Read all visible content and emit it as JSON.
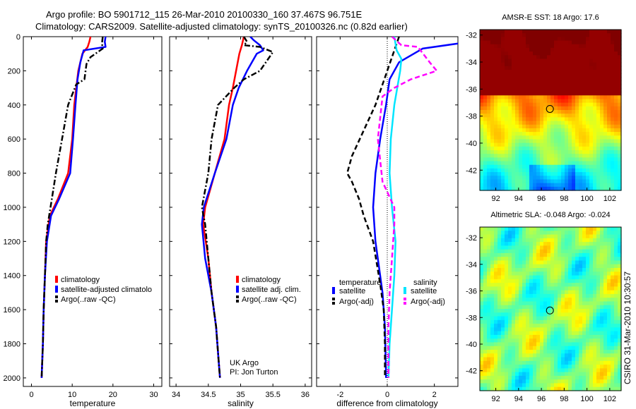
{
  "header": {
    "line1": "Argo profile: BO 5901712_115 26-Mar-2010 20100330_160 37.467S 96.751E",
    "line2": "Climatology: CARS2009. Satellite-adjusted climatology: synTS_20100326.nc (0.82d earlier)"
  },
  "side_label": "CSIRO 31-Mar-2010 10:30:57",
  "colors": {
    "red": "#ff0000",
    "blue": "#0000ff",
    "black": "#000000",
    "cyan": "#00e5ff",
    "magenta": "#ff00ff"
  },
  "chart_data": [
    {
      "type": "line",
      "xlabel": "temperature",
      "xlim": [
        -2,
        32
      ],
      "ylim": [
        2050,
        0
      ],
      "xticks": [
        0,
        10,
        20,
        30
      ],
      "yticks": [
        0,
        200,
        400,
        600,
        800,
        1000,
        1200,
        1400,
        1600,
        1800,
        2000
      ],
      "series": [
        {
          "name": "climatology",
          "color": "red",
          "dash": "solid",
          "points": [
            [
              14.5,
              0
            ],
            [
              14.2,
              30
            ],
            [
              13.8,
              60
            ],
            [
              12.5,
              100
            ],
            [
              11.5,
              200
            ],
            [
              11,
              300
            ],
            [
              10.5,
              400
            ],
            [
              10,
              600
            ],
            [
              9,
              800
            ],
            [
              6.5,
              950
            ],
            [
              4.5,
              1050
            ],
            [
              3.6,
              1200
            ],
            [
              3.3,
              1400
            ],
            [
              3,
              1600
            ],
            [
              2.8,
              1800
            ],
            [
              2.5,
              2000
            ]
          ]
        },
        {
          "name": "satellite-adjusted climatology",
          "color": "blue",
          "dash": "solid",
          "points": [
            [
              18.2,
              0
            ],
            [
              18,
              30
            ],
            [
              18.2,
              60
            ],
            [
              12.8,
              80
            ],
            [
              12,
              150
            ],
            [
              11.3,
              250
            ],
            [
              10.8,
              400
            ],
            [
              10.2,
              600
            ],
            [
              9.5,
              800
            ],
            [
              6.8,
              950
            ],
            [
              4.8,
              1050
            ],
            [
              3.8,
              1200
            ],
            [
              3.3,
              1400
            ],
            [
              3,
              1600
            ],
            [
              2.8,
              1800
            ],
            [
              2.5,
              2000
            ]
          ]
        },
        {
          "name": "Argo(..raw -QC)",
          "color": "black",
          "dash": "dashdot",
          "points": [
            [
              17.5,
              0
            ],
            [
              17.3,
              40
            ],
            [
              17.5,
              70
            ],
            [
              14.5,
              120
            ],
            [
              13.5,
              160
            ],
            [
              13,
              250
            ],
            [
              11,
              280
            ],
            [
              9,
              400
            ],
            [
              7.5,
              600
            ],
            [
              6,
              800
            ],
            [
              5,
              950
            ],
            [
              4,
              1100
            ],
            [
              3.6,
              1200
            ],
            [
              3.3,
              1400
            ],
            [
              3,
              1600
            ],
            [
              2.8,
              1800
            ],
            [
              2.5,
              2000
            ]
          ]
        }
      ],
      "legend": [
        {
          "label": "climatology",
          "color": "red",
          "style": "solid"
        },
        {
          "label": "satellite-adjusted climatolo",
          "color": "blue",
          "style": "solid"
        },
        {
          "label": "Argo(..raw -QC)",
          "color": "black",
          "style": "dashed"
        }
      ]
    },
    {
      "type": "line",
      "xlabel": "salinity",
      "xlim": [
        33.9,
        36.1
      ],
      "ylim": [
        2050,
        0
      ],
      "xticks": [
        34,
        34.5,
        35,
        35.5,
        36
      ],
      "xticklabels": [
        "34",
        "34.5",
        "35",
        "35.5",
        "36"
      ],
      "yticks": [
        0,
        200,
        400,
        600,
        800,
        1000,
        1200,
        1400,
        1600,
        1800,
        2000
      ],
      "series": [
        {
          "name": "climatology",
          "color": "red",
          "dash": "solid",
          "points": [
            [
              35.05,
              0
            ],
            [
              35.02,
              50
            ],
            [
              34.98,
              100
            ],
            [
              34.93,
              200
            ],
            [
              34.88,
              300
            ],
            [
              34.82,
              400
            ],
            [
              34.75,
              600
            ],
            [
              34.6,
              800
            ],
            [
              34.45,
              1000
            ],
            [
              34.42,
              1100
            ],
            [
              34.5,
              1300
            ],
            [
              34.55,
              1500
            ],
            [
              34.62,
              1700
            ],
            [
              34.66,
              1900
            ],
            [
              34.68,
              2000
            ]
          ]
        },
        {
          "name": "satellite adj. clim.",
          "color": "blue",
          "dash": "solid",
          "points": [
            [
              35.15,
              0
            ],
            [
              35.2,
              20
            ],
            [
              35.3,
              50
            ],
            [
              35.35,
              80
            ],
            [
              35.25,
              100
            ],
            [
              35.1,
              200
            ],
            [
              34.97,
              300
            ],
            [
              34.88,
              400
            ],
            [
              34.78,
              600
            ],
            [
              34.6,
              800
            ],
            [
              34.43,
              1000
            ],
            [
              34.4,
              1100
            ],
            [
              34.45,
              1300
            ],
            [
              34.55,
              1500
            ],
            [
              34.62,
              1700
            ],
            [
              34.66,
              1900
            ],
            [
              34.68,
              2000
            ]
          ]
        },
        {
          "name": "Argo(..raw -QC)",
          "color": "black",
          "dash": "dashdot",
          "points": [
            [
              35.05,
              0
            ],
            [
              35.1,
              30
            ],
            [
              35.05,
              50
            ],
            [
              35.3,
              60
            ],
            [
              35.5,
              90
            ],
            [
              35.3,
              200
            ],
            [
              35.05,
              250
            ],
            [
              34.9,
              300
            ],
            [
              34.65,
              400
            ],
            [
              34.55,
              600
            ],
            [
              34.5,
              800
            ],
            [
              34.4,
              1000
            ],
            [
              34.45,
              1100
            ],
            [
              34.5,
              1300
            ],
            [
              34.55,
              1500
            ],
            [
              34.62,
              1700
            ],
            [
              34.66,
              1900
            ],
            [
              34.68,
              2000
            ]
          ]
        }
      ],
      "legend": [
        {
          "label": "climatology",
          "color": "red",
          "style": "solid"
        },
        {
          "label": "satellite adj. clim.",
          "color": "blue",
          "style": "solid"
        },
        {
          "label": "Argo(..raw -QC)",
          "color": "black",
          "style": "dashed"
        }
      ],
      "annotations": [
        "UK Argo",
        "PI: Jon Turton"
      ]
    },
    {
      "type": "line",
      "xlabel": "difference from climatology",
      "xlim": [
        -3,
        3
      ],
      "ylim": [
        2050,
        0
      ],
      "xticks": [
        -2,
        0,
        2
      ],
      "yticks": [
        0,
        200,
        400,
        600,
        800,
        1000,
        1200,
        1400,
        1600,
        1800,
        2000
      ],
      "zero_line": "dotted",
      "series": [
        {
          "name": "temperature satellite",
          "color": "blue",
          "dash": "solid",
          "points": [
            [
              4,
              0
            ],
            [
              3,
              40
            ],
            [
              1.5,
              70
            ],
            [
              0.5,
              150
            ],
            [
              0.3,
              200
            ],
            [
              0.1,
              250
            ],
            [
              -0.05,
              400
            ],
            [
              -0.3,
              600
            ],
            [
              -0.5,
              800
            ],
            [
              -0.6,
              1000
            ],
            [
              -0.5,
              1200
            ],
            [
              -0.2,
              1500
            ],
            [
              -0.1,
              1700
            ],
            [
              -0.05,
              2000
            ]
          ]
        },
        {
          "name": "temperature Argo(-adj)",
          "color": "black",
          "dash": "dashed",
          "points": [
            [
              0.5,
              0
            ],
            [
              -0.5,
              400
            ],
            [
              -1.5,
              700
            ],
            [
              -1.7,
              800
            ],
            [
              -1.5,
              850
            ],
            [
              -1.2,
              950
            ],
            [
              -1.0,
              1050
            ],
            [
              -0.6,
              1200
            ],
            [
              -0.3,
              1450
            ],
            [
              -0.15,
              1600
            ],
            [
              -0.1,
              1800
            ],
            [
              -0.1,
              2000
            ]
          ]
        },
        {
          "name": "salinity satellite",
          "color": "cyan",
          "dash": "solid",
          "points": [
            [
              0.3,
              0
            ],
            [
              0.4,
              80
            ],
            [
              0.6,
              130
            ],
            [
              0.55,
              200
            ],
            [
              0.3,
              400
            ],
            [
              0.15,
              600
            ],
            [
              0.1,
              800
            ],
            [
              0.2,
              1000
            ],
            [
              0.35,
              1200
            ],
            [
              0.3,
              1400
            ],
            [
              0.2,
              1600
            ],
            [
              0.1,
              1800
            ],
            [
              0.05,
              2000
            ]
          ]
        },
        {
          "name": "salinity Argo(-adj)",
          "color": "magenta",
          "dash": "dashed",
          "points": [
            [
              0.2,
              0
            ],
            [
              0.6,
              50
            ],
            [
              1.3,
              60
            ],
            [
              1.8,
              150
            ],
            [
              2.1,
              200
            ],
            [
              1.0,
              250
            ],
            [
              0.3,
              300
            ],
            [
              -0.2,
              350
            ],
            [
              -0.4,
              600
            ],
            [
              -0.2,
              850
            ],
            [
              0.3,
              1000
            ],
            [
              0.3,
              1100
            ],
            [
              0.2,
              1300
            ],
            [
              0.1,
              1500
            ],
            [
              0.05,
              1700
            ],
            [
              0.05,
              2000
            ]
          ]
        }
      ],
      "legend": {
        "groups": [
          {
            "title": "temperature",
            "items": [
              {
                "label": "satellite",
                "color": "blue",
                "style": "solid"
              },
              {
                "label": "Argo(-adj)",
                "color": "black",
                "style": "dashed"
              }
            ]
          },
          {
            "title": "salinity",
            "items": [
              {
                "label": "satellite",
                "color": "cyan",
                "style": "solid"
              },
              {
                "label": "Argo(-adj)",
                "color": "magenta",
                "style": "dashed"
              }
            ]
          }
        ]
      }
    },
    {
      "type": "heatmap",
      "title": "AMSR-E SST: 18 Argo: 17.6",
      "xlim": [
        90.6,
        103
      ],
      "ylim": [
        -43.5,
        -31.6
      ],
      "xticks": [
        92,
        94,
        96,
        98,
        100,
        102
      ],
      "yticks": [
        -32,
        -34,
        -36,
        -38,
        -40,
        -42
      ],
      "marker": {
        "x": 96.75,
        "y": -37.47
      },
      "field": "sst"
    },
    {
      "type": "heatmap",
      "title": "Altimetric SLA: -0.048 Argo: -0.024",
      "xlim": [
        90.6,
        103
      ],
      "ylim": [
        -43.5,
        -31.2
      ],
      "xticks": [
        92,
        94,
        96,
        98,
        100,
        102
      ],
      "yticks": [
        -32,
        -34,
        -36,
        -38,
        -40,
        -42
      ],
      "marker": {
        "x": 96.75,
        "y": -37.47
      },
      "field": "sla"
    }
  ]
}
